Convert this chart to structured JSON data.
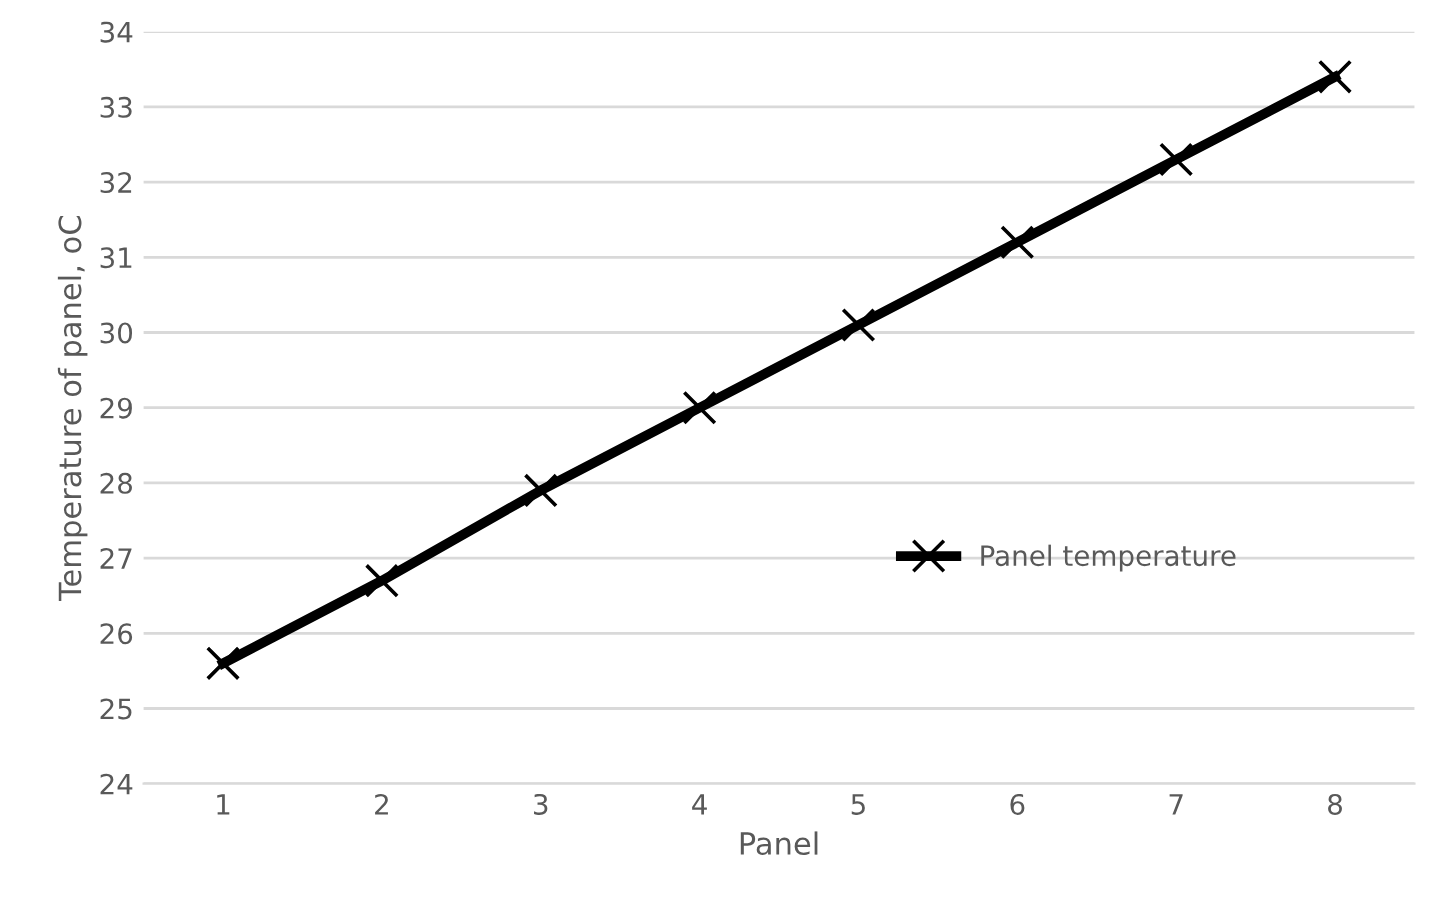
{
  "chart_data": {
    "type": "line",
    "xlabel": "Panel",
    "ylabel": "Temperature of panel, oC",
    "categories": [
      "1",
      "2",
      "3",
      "4",
      "5",
      "6",
      "7",
      "8"
    ],
    "series": [
      {
        "name": "Panel temperature",
        "color": "#000000",
        "values": [
          25.6,
          26.7,
          27.9,
          29.0,
          30.1,
          31.2,
          32.3,
          33.4
        ]
      }
    ],
    "ylim": [
      24,
      34
    ],
    "yticks": [
      24,
      25,
      26,
      27,
      28,
      29,
      30,
      31,
      32,
      33,
      34
    ],
    "grid": "y",
    "legend": "right",
    "marker": "cross",
    "line_style": "solid"
  }
}
